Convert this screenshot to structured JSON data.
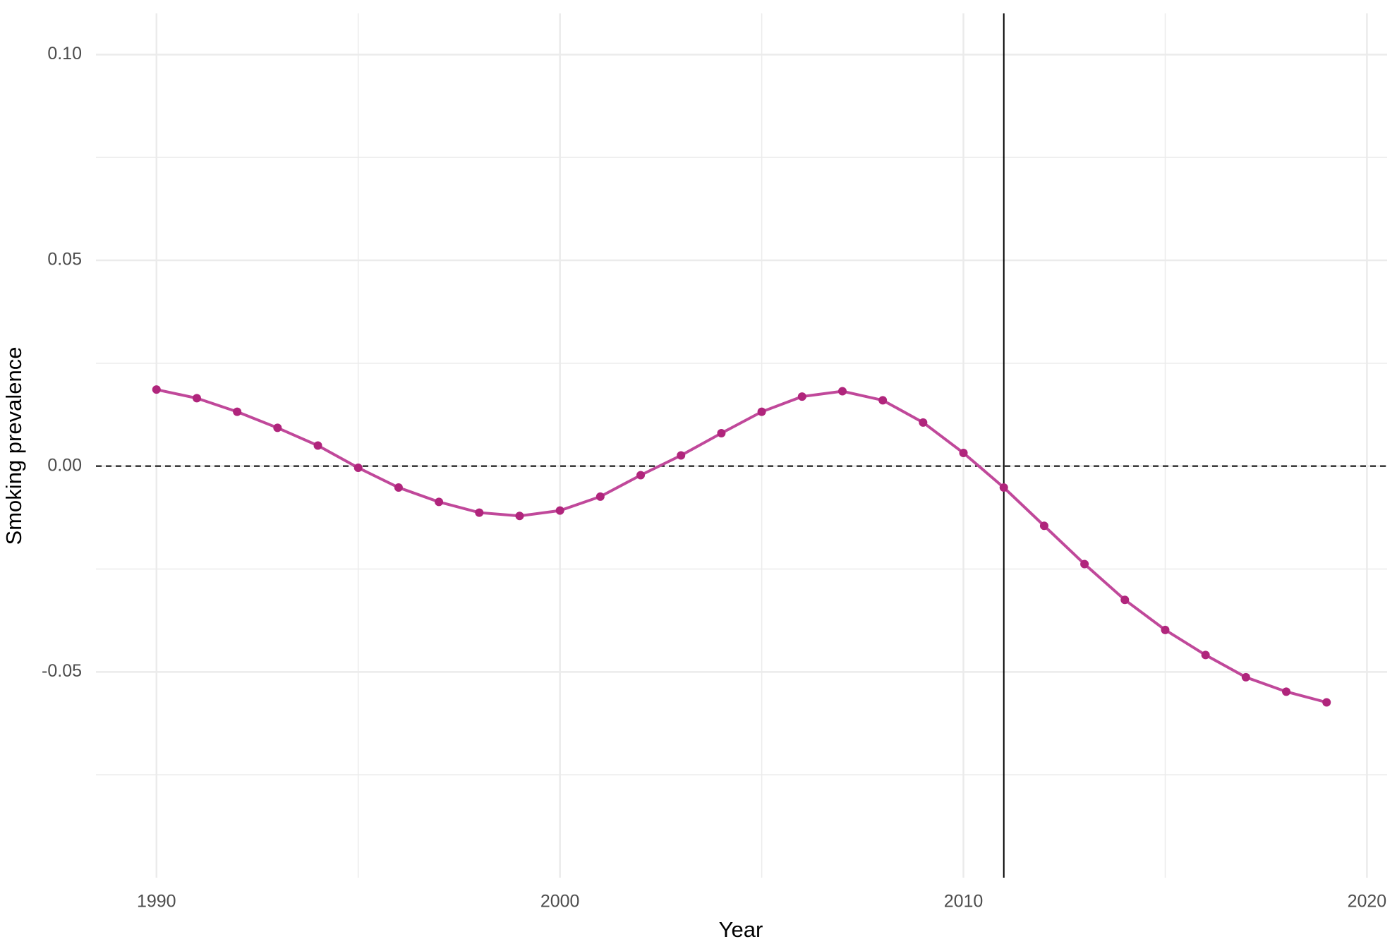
{
  "chart_data": {
    "type": "line",
    "x_label": "Year",
    "y_label": "Smoking prevalence",
    "x": [
      1990,
      1991,
      1992,
      1993,
      1994,
      1995,
      1996,
      1997,
      1998,
      1999,
      2000,
      2001,
      2002,
      2003,
      2004,
      2005,
      2006,
      2007,
      2008,
      2009,
      2010,
      2011,
      2012,
      2013,
      2014,
      2015,
      2016,
      2017,
      2018,
      2019
    ],
    "values": [
      0.0186,
      0.0165,
      0.0132,
      0.0093,
      0.005,
      -0.0004,
      -0.0052,
      -0.0087,
      -0.0113,
      -0.0121,
      -0.0108,
      -0.0074,
      -0.0022,
      0.0026,
      0.008,
      0.0132,
      0.0169,
      0.0182,
      0.016,
      0.0106,
      0.0032,
      -0.0052,
      -0.0145,
      -0.0238,
      -0.0325,
      -0.0398,
      -0.0459,
      -0.0513,
      -0.0548,
      -0.0574
    ],
    "color": "#c0489a",
    "point_color": "#b0257c",
    "xlim": [
      1988.5,
      2020.5
    ],
    "xticks": [
      1990,
      2000,
      2010,
      2020
    ],
    "ylim": [
      -0.1,
      0.11
    ],
    "yticks": [
      {
        "value": -0.05,
        "label": "-0.05"
      },
      {
        "value": 0,
        "label": "0.00"
      },
      {
        "value": 0.05,
        "label": "0.05"
      },
      {
        "value": 0.1,
        "label": "0.10"
      }
    ],
    "grid": true,
    "vline": 2011,
    "hline": 0
  }
}
